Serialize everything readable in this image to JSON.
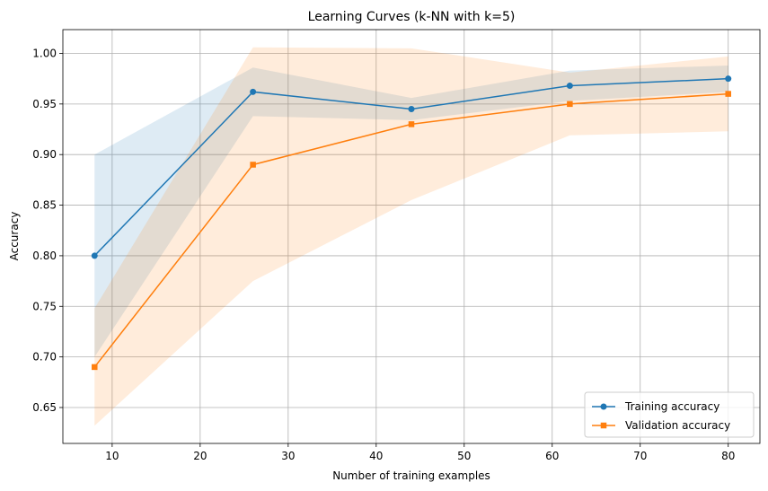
{
  "chart_data": {
    "type": "line",
    "title": "Learning Curves (k-NN with k=5)",
    "xlabel": "Number of training examples",
    "ylabel": "Accuracy",
    "xlim": [
      4.4,
      83.6
    ],
    "ylim": [
      0.6145,
      1.0235
    ],
    "x_ticks": [
      10,
      20,
      30,
      40,
      50,
      60,
      70,
      80
    ],
    "y_ticks": [
      0.65,
      0.7,
      0.75,
      0.8,
      0.85,
      0.9,
      0.95,
      1.0
    ],
    "x_tick_labels": [
      "10",
      "20",
      "30",
      "40",
      "50",
      "60",
      "70",
      "80"
    ],
    "y_tick_labels": [
      "0.65",
      "0.70",
      "0.75",
      "0.80",
      "0.85",
      "0.90",
      "0.95",
      "1.00"
    ],
    "grid": true,
    "legend_position": "lower right",
    "x": [
      8,
      26,
      44,
      62,
      80
    ],
    "series": [
      {
        "name": "Training accuracy",
        "values": [
          0.8,
          0.962,
          0.945,
          0.968,
          0.975
        ],
        "lower": [
          0.7,
          0.938,
          0.934,
          0.953,
          0.962
        ],
        "upper": [
          0.9,
          0.986,
          0.956,
          0.983,
          0.988
        ],
        "color": "#1f77b4",
        "marker": "circle"
      },
      {
        "name": "Validation accuracy",
        "values": [
          0.69,
          0.89,
          0.93,
          0.95,
          0.96
        ],
        "lower": [
          0.632,
          0.775,
          0.855,
          0.919,
          0.923
        ],
        "upper": [
          0.748,
          1.006,
          1.005,
          0.981,
          0.997
        ],
        "color": "#ff7f0e",
        "marker": "square"
      }
    ]
  }
}
